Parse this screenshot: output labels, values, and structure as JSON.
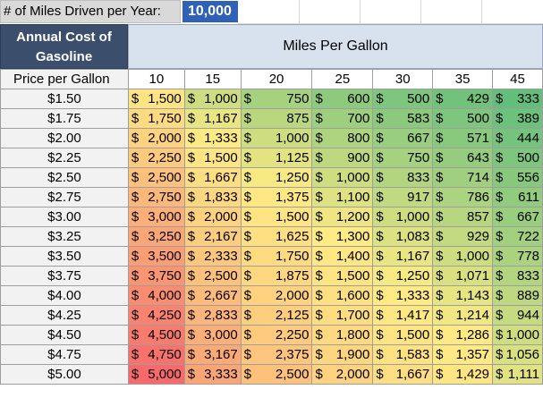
{
  "miles_input": {
    "label": "# of Miles Driven per Year:",
    "value": "10,000"
  },
  "header": {
    "annual_cost_label_line1": "Annual Cost of",
    "annual_cost_label_line2": "Gasoline",
    "mpg_title": "Miles Per Gallon",
    "price_per_gallon_label": "Price per Gallon"
  },
  "mpg_columns": [
    "10",
    "15",
    "20",
    "25",
    "30",
    "35",
    "45"
  ],
  "rows": [
    {
      "price": "$1.50",
      "values": [
        "$1,500",
        "$1,000",
        "$750",
        "$600",
        "$500",
        "$429",
        "$333"
      ]
    },
    {
      "price": "$1.75",
      "values": [
        "$1,750",
        "$1,167",
        "$875",
        "$700",
        "$583",
        "$500",
        "$389"
      ]
    },
    {
      "price": "$2.00",
      "values": [
        "$2,000",
        "$1,333",
        "$1,000",
        "$800",
        "$667",
        "$571",
        "$444"
      ]
    },
    {
      "price": "$2.25",
      "values": [
        "$2,250",
        "$1,500",
        "$1,125",
        "$900",
        "$750",
        "$643",
        "$500"
      ]
    },
    {
      "price": "$2.50",
      "values": [
        "$2,500",
        "$1,667",
        "$1,250",
        "$1,000",
        "$833",
        "$714",
        "$556"
      ]
    },
    {
      "price": "$2.75",
      "values": [
        "$2,750",
        "$1,833",
        "$1,375",
        "$1,100",
        "$917",
        "$786",
        "$611"
      ]
    },
    {
      "price": "$3.00",
      "values": [
        "$3,000",
        "$2,000",
        "$1,500",
        "$1,200",
        "$1,000",
        "$857",
        "$667"
      ]
    },
    {
      "price": "$3.25",
      "values": [
        "$3,250",
        "$2,167",
        "$1,625",
        "$1,300",
        "$1,083",
        "$929",
        "$722"
      ]
    },
    {
      "price": "$3.50",
      "values": [
        "$3,500",
        "$2,333",
        "$1,750",
        "$1,400",
        "$1,167",
        "$1,000",
        "$778"
      ]
    },
    {
      "price": "$3.75",
      "values": [
        "$3,750",
        "$2,500",
        "$1,875",
        "$1,500",
        "$1,250",
        "$1,071",
        "$833"
      ]
    },
    {
      "price": "$4.00",
      "values": [
        "$4,000",
        "$2,667",
        "$2,000",
        "$1,600",
        "$1,333",
        "$1,143",
        "$889"
      ]
    },
    {
      "price": "$4.25",
      "values": [
        "$4,250",
        "$2,833",
        "$2,125",
        "$1,700",
        "$1,417",
        "$1,214",
        "$944"
      ]
    },
    {
      "price": "$4.50",
      "values": [
        "$4,500",
        "$3,000",
        "$2,250",
        "$1,800",
        "$1,500",
        "$1,286",
        "$1,000"
      ]
    },
    {
      "price": "$4.75",
      "values": [
        "$4,750",
        "$3,167",
        "$2,375",
        "$1,900",
        "$1,583",
        "$1,357",
        "$1,056"
      ]
    },
    {
      "price": "$5.00",
      "values": [
        "$5,000",
        "$3,333",
        "$2,500",
        "$2,000",
        "$1,667",
        "$1,429",
        "$1,111"
      ]
    }
  ],
  "colors": {
    "scale_low": "#63be7b",
    "scale_mid": "#ffeb84",
    "scale_high": "#f8696b",
    "input_value_bg": "#2f62b6",
    "annual_cost_bg": "#3b4e6b",
    "mpg_header_bg": "#d8e1ee"
  }
}
